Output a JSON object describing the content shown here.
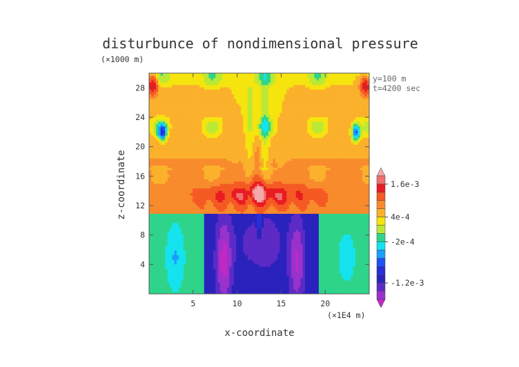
{
  "chart_data": {
    "type": "heatmap",
    "title": "disturbunce of nondimensional pressure",
    "xlabel": "x-coordinate",
    "ylabel": "z-coordinate",
    "x_unit": "(×1E4 m)",
    "z_unit": "(×1000 m)",
    "annotations": [
      "y=100 m",
      "t=4200 sec"
    ],
    "xlim": [
      0,
      25
    ],
    "ylim": [
      0,
      30
    ],
    "x_ticks": [
      5,
      10,
      15,
      20
    ],
    "y_ticks": [
      4,
      8,
      12,
      16,
      20,
      24,
      28
    ],
    "x_tick_labels": [
      "5",
      "10",
      "15",
      "20"
    ],
    "y_tick_labels": [
      "4",
      "8",
      "12",
      "16",
      "20",
      "24",
      "28"
    ],
    "grid": false,
    "legend": {
      "placement": "right",
      "tick_labels": [
        "1.6e-3",
        "4e-4",
        "-2e-4",
        "-1.2e-3"
      ],
      "tick_values": [
        0.0016,
        0.0004,
        -0.0002,
        -0.0012
      ]
    },
    "levels": [
      {
        "min": 0.0018,
        "max": null,
        "color": "#f4aaa8"
      },
      {
        "min": 0.0016,
        "max": 0.0018,
        "color": "#f07070"
      },
      {
        "min": 0.0012,
        "max": 0.0016,
        "color": "#e81c22"
      },
      {
        "min": 0.0008,
        "max": 0.0012,
        "color": "#f55a24"
      },
      {
        "min": 0.0006,
        "max": 0.0008,
        "color": "#f88b2c"
      },
      {
        "min": 0.0004,
        "max": 0.0006,
        "color": "#fbb12c"
      },
      {
        "min": 0.0002,
        "max": 0.0004,
        "color": "#f5e40e"
      },
      {
        "min": 0.0,
        "max": 0.0002,
        "color": "#b9e935"
      },
      {
        "min": -0.0002,
        "max": 0.0,
        "color": "#2ed48a"
      },
      {
        "min": -0.0004,
        "max": -0.0002,
        "color": "#15e3ee"
      },
      {
        "min": -0.0006,
        "max": -0.0004,
        "color": "#1a9eff"
      },
      {
        "min": -0.0008,
        "max": -0.0006,
        "color": "#1f52f5"
      },
      {
        "min": -0.001,
        "max": -0.0008,
        "color": "#2530d8"
      },
      {
        "min": -0.0012,
        "max": -0.001,
        "color": "#2b22bc"
      },
      {
        "min": -0.0014,
        "max": -0.0012,
        "color": "#5d2ac6"
      },
      {
        "min": -0.0016,
        "max": -0.0014,
        "color": "#9932cc"
      },
      {
        "min": null,
        "max": -0.0016,
        "color": "#c228c4"
      }
    ]
  }
}
